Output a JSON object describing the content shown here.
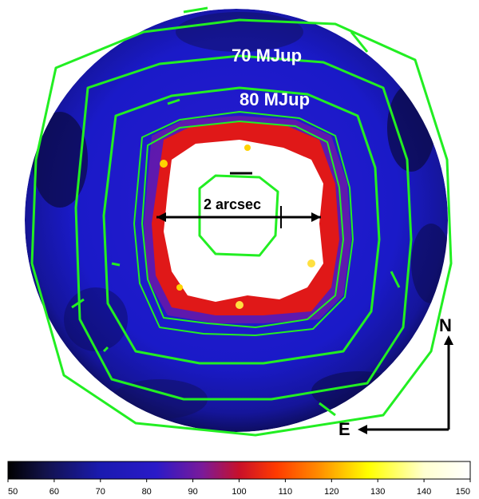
{
  "annotations": {
    "contour_label_1": "70 MJup",
    "contour_label_2": "80 MJup",
    "scale_label": "2 arcsec"
  },
  "compass": {
    "north_label": "N",
    "east_label": "E"
  },
  "colorbar": {
    "min": 50,
    "max": 150,
    "ticks": [
      "50",
      "60",
      "70",
      "80",
      "90",
      "100",
      "110",
      "120",
      "130",
      "140",
      "150"
    ],
    "colormap": [
      "#000000",
      "#12124a",
      "#1a1ab0",
      "#2a1ac8",
      "#7a1a9a",
      "#c8102a",
      "#ff3a00",
      "#ff8a00",
      "#ffff00",
      "#ffffd0",
      "#ffffff"
    ]
  },
  "colors": {
    "background_disk": "#1c1cc4",
    "contour": "#22ee22",
    "saturated_center": "#ffffff",
    "halo_inner": "#ff2a10",
    "halo_outer": "#8a1a8a"
  }
}
